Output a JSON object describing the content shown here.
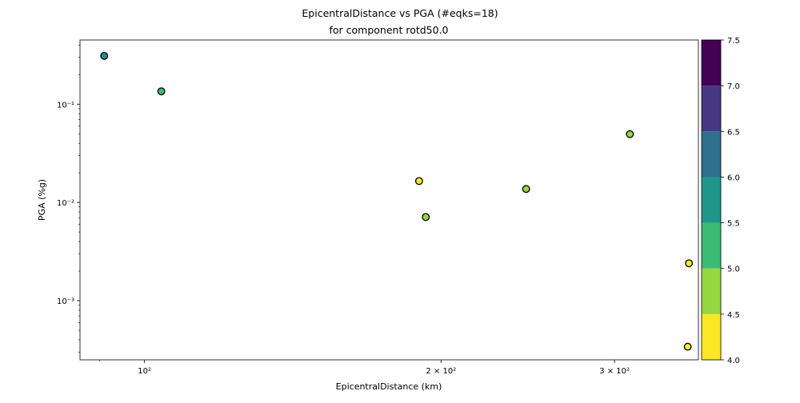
{
  "chart_data": {
    "type": "scatter",
    "title": "EpicentralDistance vs PGA (#eqks=18)",
    "subtitle": "for component rotd50.0",
    "xlabel": "EpicentralDistance (km)",
    "ylabel": "PGA (%g)",
    "xscale": "log",
    "yscale": "log",
    "xlim": [
      86,
      365
    ],
    "ylim": [
      0.00025,
      0.45
    ],
    "xticks": [
      {
        "value": 100,
        "label": "10²"
      },
      {
        "value": 200,
        "label": "2 × 10²"
      },
      {
        "value": 300,
        "label": "3 × 10²"
      }
    ],
    "yticks": [
      {
        "value": 0.1,
        "label": "10⁻¹"
      },
      {
        "value": 0.01,
        "label": "10⁻²"
      },
      {
        "value": 0.001,
        "label": "10⁻³"
      }
    ],
    "points": [
      {
        "x": 91,
        "y": 0.31,
        "magnitude": 5.8
      },
      {
        "x": 104,
        "y": 0.135,
        "magnitude": 5.3
      },
      {
        "x": 190,
        "y": 0.0165,
        "magnitude": 4.1
      },
      {
        "x": 193,
        "y": 0.0071,
        "magnitude": 4.6
      },
      {
        "x": 244,
        "y": 0.0137,
        "magnitude": 4.7
      },
      {
        "x": 311,
        "y": 0.0495,
        "magnitude": 4.8
      },
      {
        "x": 357,
        "y": 0.0024,
        "magnitude": 4.1
      },
      {
        "x": 356,
        "y": 0.00034,
        "magnitude": 4.1
      }
    ],
    "colorbar": {
      "bounds": [
        4.0,
        4.5,
        5.0,
        5.5,
        6.0,
        6.5,
        7.0,
        7.5
      ],
      "tick_labels": [
        "4.0",
        "4.5",
        "5.0",
        "5.5",
        "6.0",
        "6.5",
        "7.0",
        "7.5"
      ],
      "colors": [
        "#fde725",
        "#95d840",
        "#3cbb75",
        "#1f968b",
        "#2d708e",
        "#453781",
        "#440154"
      ]
    },
    "marker_edge_color": "#000000",
    "grid": false
  }
}
